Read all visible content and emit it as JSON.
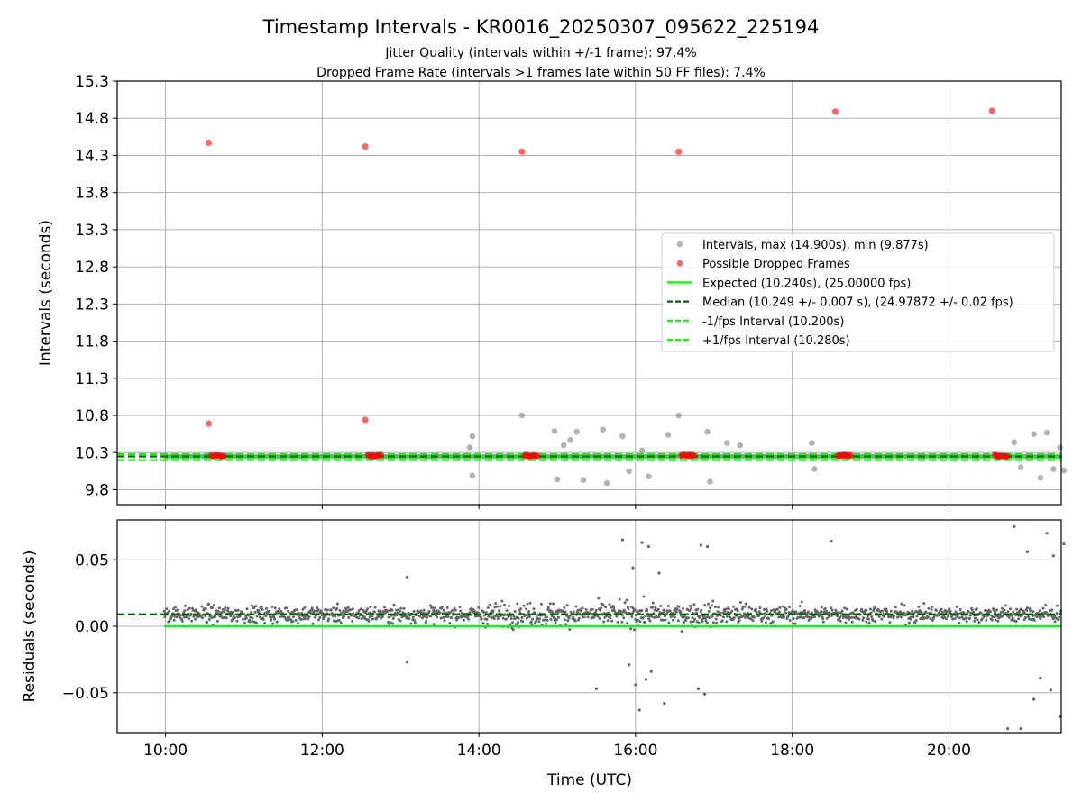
{
  "chart_data": {
    "type": "scatter",
    "title": "Timestamp Intervals - KR0016_20250307_095622_225194",
    "subtitle_lines": [
      "Jitter Quality (intervals within +/-1 frame): 97.4%",
      "Dropped Frame Rate (intervals >1 frames late within 50 FF files): 7.4%"
    ],
    "xlabel": "Time (UTC)",
    "x_ticks": [
      "10:00",
      "12:00",
      "14:00",
      "16:00",
      "18:00",
      "20:00"
    ],
    "grid": true,
    "legend_position": "center-right",
    "top_panel": {
      "ylabel": "Intervals (seconds)",
      "ylim": [
        9.6,
        15.3
      ],
      "y_ticks": [
        "9.8",
        "10.3",
        "10.8",
        "11.3",
        "11.8",
        "12.3",
        "12.8",
        "13.3",
        "13.8",
        "14.3",
        "14.8",
        "15.3"
      ],
      "legend": [
        {
          "label": "Intervals, max (14.900s), min (9.877s)",
          "color": "#808080",
          "marker": "circle"
        },
        {
          "label": "Possible Dropped Frames",
          "color": "#ff0000",
          "marker": "circle"
        },
        {
          "label": "Expected (10.240s), (25.00000 fps)",
          "color": "#00ff00",
          "marker": "solid"
        },
        {
          "label": "Median (10.249 +/- 0.007 s), (24.97872 +/- 0.02 fps)",
          "color": "#006400",
          "marker": "dashed"
        },
        {
          "label": "-1/fps Interval (10.200s)",
          "color": "#00ff00",
          "marker": "dashed"
        },
        {
          "label": "+1/fps Interval (10.280s)",
          "color": "#00ff00",
          "marker": "dashed"
        }
      ],
      "reference_lines": {
        "expected": 10.24,
        "median": 10.249,
        "minus_1_fps": 10.2,
        "plus_1_fps": 10.28
      },
      "dropped_frames": [
        {
          "time": "10:33",
          "interval": 14.47
        },
        {
          "time": "10:33",
          "interval": 10.69
        },
        {
          "time": "12:33",
          "interval": 14.42
        },
        {
          "time": "12:33",
          "interval": 10.74
        },
        {
          "time": "14:33",
          "interval": 14.35
        },
        {
          "time": "16:33",
          "interval": 14.35
        },
        {
          "time": "18:33",
          "interval": 14.89
        },
        {
          "time": "20:33",
          "interval": 14.9
        }
      ],
      "dropped_frame_clusters": [
        {
          "start": "10:35",
          "end": "10:45",
          "interval": 10.26
        },
        {
          "start": "12:35",
          "end": "12:45",
          "interval": 10.26
        },
        {
          "start": "14:35",
          "end": "14:45",
          "interval": 10.26
        },
        {
          "start": "16:35",
          "end": "16:45",
          "interval": 10.26
        },
        {
          "start": "18:35",
          "end": "18:45",
          "interval": 10.26
        },
        {
          "start": "20:35",
          "end": "20:45",
          "interval": 10.26
        }
      ],
      "outlier_intervals": [
        {
          "time": "13:53",
          "interval": 10.37
        },
        {
          "time": "13:55",
          "interval": 10.52
        },
        {
          "time": "13:55",
          "interval": 9.99
        },
        {
          "time": "14:33",
          "interval": 10.8
        },
        {
          "time": "14:58",
          "interval": 10.59
        },
        {
          "time": "15:00",
          "interval": 9.94
        },
        {
          "time": "15:05",
          "interval": 10.4
        },
        {
          "time": "15:10",
          "interval": 10.47
        },
        {
          "time": "15:15",
          "interval": 10.58
        },
        {
          "time": "15:20",
          "interval": 9.93
        },
        {
          "time": "15:35",
          "interval": 10.61
        },
        {
          "time": "15:38",
          "interval": 9.89
        },
        {
          "time": "15:50",
          "interval": 10.52
        },
        {
          "time": "15:55",
          "interval": 10.05
        },
        {
          "time": "16:05",
          "interval": 10.33
        },
        {
          "time": "16:10",
          "interval": 9.98
        },
        {
          "time": "16:25",
          "interval": 10.54
        },
        {
          "time": "16:33",
          "interval": 10.8
        },
        {
          "time": "16:55",
          "interval": 10.58
        },
        {
          "time": "16:57",
          "interval": 9.91
        },
        {
          "time": "17:10",
          "interval": 10.43
        },
        {
          "time": "17:20",
          "interval": 10.4
        },
        {
          "time": "18:15",
          "interval": 10.43
        },
        {
          "time": "18:17",
          "interval": 10.08
        },
        {
          "time": "20:50",
          "interval": 10.44
        },
        {
          "time": "20:55",
          "interval": 10.1
        },
        {
          "time": "21:05",
          "interval": 10.55
        },
        {
          "time": "21:10",
          "interval": 9.96
        },
        {
          "time": "21:15",
          "interval": 10.57
        },
        {
          "time": "21:20",
          "interval": 10.08
        },
        {
          "time": "21:25",
          "interval": 10.37
        },
        {
          "time": "21:28",
          "interval": 10.06
        }
      ]
    },
    "bottom_panel": {
      "ylabel": "Residuals (seconds)",
      "ylim": [
        -0.08,
        0.08
      ],
      "y_ticks": [
        "0.05",
        "0.00",
        "−0.05"
      ],
      "reference_lines": {
        "expected": 0.0,
        "median": 0.009
      },
      "outlier_residuals": [
        {
          "time": "13:05",
          "residual": 0.037
        },
        {
          "time": "13:05",
          "residual": -0.027
        },
        {
          "time": "15:50",
          "residual": 0.065
        },
        {
          "time": "15:55",
          "residual": -0.029
        },
        {
          "time": "15:58",
          "residual": 0.044
        },
        {
          "time": "16:00",
          "residual": -0.044
        },
        {
          "time": "16:03",
          "residual": -0.063
        },
        {
          "time": "16:05",
          "residual": 0.063
        },
        {
          "time": "16:08",
          "residual": -0.04
        },
        {
          "time": "16:10",
          "residual": 0.06
        },
        {
          "time": "16:12",
          "residual": -0.034
        },
        {
          "time": "16:18",
          "residual": 0.04
        },
        {
          "time": "16:22",
          "residual": -0.058
        },
        {
          "time": "16:48",
          "residual": -0.047
        },
        {
          "time": "16:50",
          "residual": 0.061
        },
        {
          "time": "16:53",
          "residual": -0.051
        },
        {
          "time": "16:55",
          "residual": 0.06
        },
        {
          "time": "15:30",
          "residual": -0.047
        },
        {
          "time": "18:30",
          "residual": 0.064
        },
        {
          "time": "20:45",
          "residual": -0.077
        },
        {
          "time": "20:50",
          "residual": 0.075
        },
        {
          "time": "20:55",
          "residual": -0.077
        },
        {
          "time": "21:00",
          "residual": 0.056
        },
        {
          "time": "21:05",
          "residual": -0.055
        },
        {
          "time": "21:10",
          "residual": -0.039
        },
        {
          "time": "21:15",
          "residual": 0.07
        },
        {
          "time": "21:18",
          "residual": -0.048
        },
        {
          "time": "21:20",
          "residual": 0.053
        },
        {
          "time": "21:25",
          "residual": -0.068
        },
        {
          "time": "21:28",
          "residual": 0.062
        }
      ]
    },
    "x_range": [
      "09:23",
      "21:26"
    ]
  }
}
